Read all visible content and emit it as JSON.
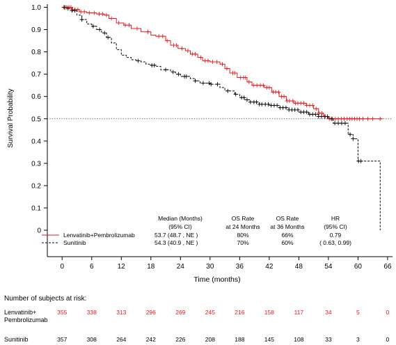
{
  "chart_data": {
    "type": "line",
    "subtype": "kaplan-meier",
    "title": "",
    "xlabel": "Time (months)",
    "ylabel": "Survival Probability",
    "xlim": [
      -3,
      67
    ],
    "ylim": [
      0,
      1.0
    ],
    "xticks": [
      0,
      6,
      12,
      18,
      24,
      30,
      36,
      42,
      48,
      54,
      60,
      66
    ],
    "yticks": [
      0,
      0.1,
      0.2,
      0.3,
      0.4,
      0.5,
      0.6,
      0.7,
      0.8,
      0.9,
      1.0
    ],
    "ytick_labels": [
      "0",
      "0.1",
      "0.2",
      "0.3",
      "0.4",
      "0.5",
      "0.6",
      "0.7",
      "0.8",
      "0.9",
      "1.0"
    ],
    "reference_line": {
      "y": 0.5,
      "style": "dotted"
    },
    "grid": false,
    "series": [
      {
        "name": "Lenvatinib+Pembrolizumab",
        "color": "#e8191d",
        "line_style": "solid",
        "points": [
          [
            0,
            1.0
          ],
          [
            2,
            0.99
          ],
          [
            3.5,
            0.98
          ],
          [
            5,
            0.975
          ],
          [
            7,
            0.97
          ],
          [
            8.5,
            0.965
          ],
          [
            9.5,
            0.95
          ],
          [
            11,
            0.93
          ],
          [
            12.5,
            0.92
          ],
          [
            14,
            0.905
          ],
          [
            16,
            0.89
          ],
          [
            18,
            0.875
          ],
          [
            19,
            0.87
          ],
          [
            21,
            0.85
          ],
          [
            22,
            0.83
          ],
          [
            23.5,
            0.815
          ],
          [
            25,
            0.805
          ],
          [
            26,
            0.79
          ],
          [
            27.5,
            0.775
          ],
          [
            28.5,
            0.76
          ],
          [
            30,
            0.755
          ],
          [
            32,
            0.745
          ],
          [
            33,
            0.725
          ],
          [
            34,
            0.705
          ],
          [
            35.5,
            0.685
          ],
          [
            37.5,
            0.665
          ],
          [
            38.5,
            0.65
          ],
          [
            41,
            0.64
          ],
          [
            42.5,
            0.62
          ],
          [
            44,
            0.6
          ],
          [
            45.5,
            0.58
          ],
          [
            47,
            0.57
          ],
          [
            49.5,
            0.56
          ],
          [
            51,
            0.545
          ],
          [
            52,
            0.525
          ],
          [
            53,
            0.51
          ],
          [
            54,
            0.5
          ],
          [
            58,
            0.5
          ],
          [
            65,
            0.5
          ]
        ],
        "censor_x": [
          0.3,
          0.6,
          0.9,
          1.2,
          1.5,
          1.8,
          2.1,
          2.6,
          3.2,
          3.8,
          4.5,
          5.5,
          6.5,
          7.5,
          8.2,
          9.0,
          10.0,
          11.5,
          12.8,
          13.6,
          15.2,
          17.4,
          19.6,
          20.4,
          21.3,
          22.6,
          23.2,
          24.3,
          25.5,
          26.4,
          27.0,
          28.1,
          29.0,
          29.6,
          30.5,
          31.4,
          32.5,
          33.4,
          34.6,
          35.0,
          36.2,
          36.8,
          37.2,
          37.9,
          38.8,
          39.5,
          40.2,
          40.8,
          41.5,
          42.0,
          42.8,
          43.3,
          43.9,
          44.5,
          45.0,
          45.6,
          46.1,
          46.8,
          47.3,
          47.8,
          48.4,
          49.0,
          49.6,
          50.2,
          50.8,
          51.5,
          52.1,
          52.7,
          53.4,
          54.2,
          54.8,
          55.4,
          56.0,
          56.6,
          57.2,
          57.8,
          58.3,
          58.8,
          59.3,
          59.8,
          60.3,
          61.0,
          62.0,
          63.0,
          64.5
        ]
      },
      {
        "name": "Sunitinib",
        "color": "#000000",
        "line_style": "dashed",
        "points": [
          [
            0,
            1.0
          ],
          [
            1,
            0.995
          ],
          [
            2,
            0.985
          ],
          [
            3,
            0.965
          ],
          [
            4,
            0.945
          ],
          [
            5,
            0.925
          ],
          [
            6,
            0.915
          ],
          [
            7,
            0.9
          ],
          [
            8,
            0.885
          ],
          [
            9,
            0.865
          ],
          [
            10,
            0.84
          ],
          [
            11,
            0.81
          ],
          [
            12,
            0.785
          ],
          [
            13,
            0.775
          ],
          [
            14,
            0.765
          ],
          [
            15,
            0.76
          ],
          [
            16,
            0.755
          ],
          [
            17,
            0.745
          ],
          [
            18,
            0.74
          ],
          [
            19,
            0.735
          ],
          [
            20,
            0.72
          ],
          [
            22,
            0.71
          ],
          [
            23,
            0.7
          ],
          [
            24,
            0.69
          ],
          [
            26,
            0.68
          ],
          [
            27,
            0.67
          ],
          [
            28,
            0.66
          ],
          [
            30,
            0.655
          ],
          [
            32,
            0.64
          ],
          [
            33,
            0.625
          ],
          [
            35,
            0.61
          ],
          [
            36,
            0.595
          ],
          [
            37,
            0.585
          ],
          [
            38,
            0.575
          ],
          [
            40,
            0.565
          ],
          [
            42,
            0.56
          ],
          [
            44,
            0.55
          ],
          [
            46,
            0.54
          ],
          [
            48,
            0.53
          ],
          [
            50,
            0.52
          ],
          [
            52,
            0.51
          ],
          [
            54,
            0.5
          ],
          [
            55,
            0.48
          ],
          [
            57,
            0.48
          ],
          [
            58,
            0.43
          ],
          [
            59,
            0.41
          ],
          [
            60,
            0.31
          ],
          [
            64.5,
            0.31
          ],
          [
            64.5,
            0.0
          ]
        ],
        "censor_x": [
          0.5,
          1.2,
          2.0,
          2.6,
          4.0,
          6.3,
          7.6,
          8.6,
          9.3,
          15.4,
          18.2,
          18.7,
          21.0,
          22.5,
          23.6,
          24.8,
          25.2,
          27.0,
          28.6,
          29.8,
          30.2,
          31.5,
          33.6,
          35.2,
          36.4,
          36.9,
          37.5,
          38.2,
          38.9,
          39.4,
          40.0,
          40.5,
          41.2,
          41.8,
          42.4,
          43.0,
          43.6,
          44.2,
          44.8,
          45.4,
          46.0,
          46.6,
          47.2,
          47.8,
          48.4,
          49.0,
          49.6,
          50.2,
          50.8,
          51.4,
          52.0,
          52.6,
          53.2,
          53.8,
          54.6,
          55.3,
          56.0,
          56.7,
          57.4,
          58.4,
          59.0,
          60.1,
          60.6
        ]
      }
    ],
    "stats_table": {
      "headers": [
        [
          "Median (Months)",
          "(95% CI)"
        ],
        [
          "OS Rate",
          "at 24 Months"
        ],
        [
          "OS Rate",
          "at 36 Months"
        ],
        [
          "HR",
          "(95% CI)"
        ]
      ],
      "rows": [
        {
          "label": "Lenvatinib+Pembrolizumab",
          "median": "53.7  (48.7 , NE  )",
          "os24": "80%",
          "os36": "66%",
          "hr": "0.79"
        },
        {
          "label": "Sunitinib",
          "median": "54.3  (40.9 , NE  )",
          "os24": "70%",
          "os36": "60%",
          "hr": "( 0.63,  0.99)"
        }
      ]
    },
    "risk_table": {
      "title": "Number of subjects at risk:",
      "times": [
        0,
        6,
        12,
        18,
        24,
        30,
        36,
        42,
        48,
        54,
        60,
        66
      ],
      "rows": [
        {
          "label_lines": [
            "Lenvatinib+",
            "Pembrolizumab"
          ],
          "color": "#e8191d",
          "values": [
            "355",
            "338",
            "313",
            "296",
            "269",
            "245",
            "216",
            "158",
            "117",
            "34",
            "5",
            "0"
          ]
        },
        {
          "label_lines": [
            "Sunitinib"
          ],
          "color": "#000000",
          "values": [
            "357",
            "308",
            "264",
            "242",
            "226",
            "208",
            "188",
            "145",
            "108",
            "33",
            "3",
            "0"
          ]
        }
      ]
    }
  }
}
